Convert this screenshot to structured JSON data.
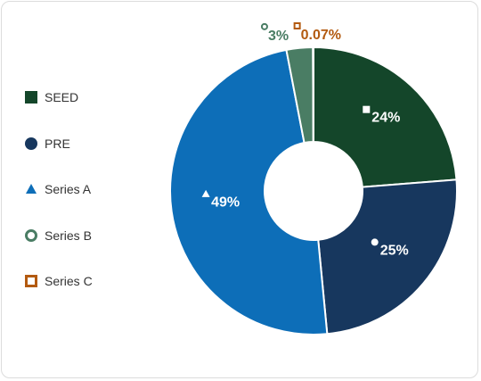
{
  "chart_data": {
    "type": "pie",
    "style": "donut",
    "legend_position": "left",
    "slices": [
      {
        "name": "SEED",
        "value": 24,
        "label": "24%",
        "color": "#14462a",
        "marker": "square"
      },
      {
        "name": "PRE",
        "value": 25,
        "label": "25%",
        "color": "#17375e",
        "marker": "circle"
      },
      {
        "name": "Series A",
        "value": 49,
        "label": "49%",
        "color": "#0d6eb8",
        "marker": "triangle"
      },
      {
        "name": "Series B",
        "value": 3,
        "label": "3%",
        "color": "#4a7d64",
        "marker": "circle-outline"
      },
      {
        "name": "Series C",
        "value": 0.07,
        "label": "0.07%",
        "color": "#b35a10",
        "marker": "square-outline"
      }
    ]
  }
}
